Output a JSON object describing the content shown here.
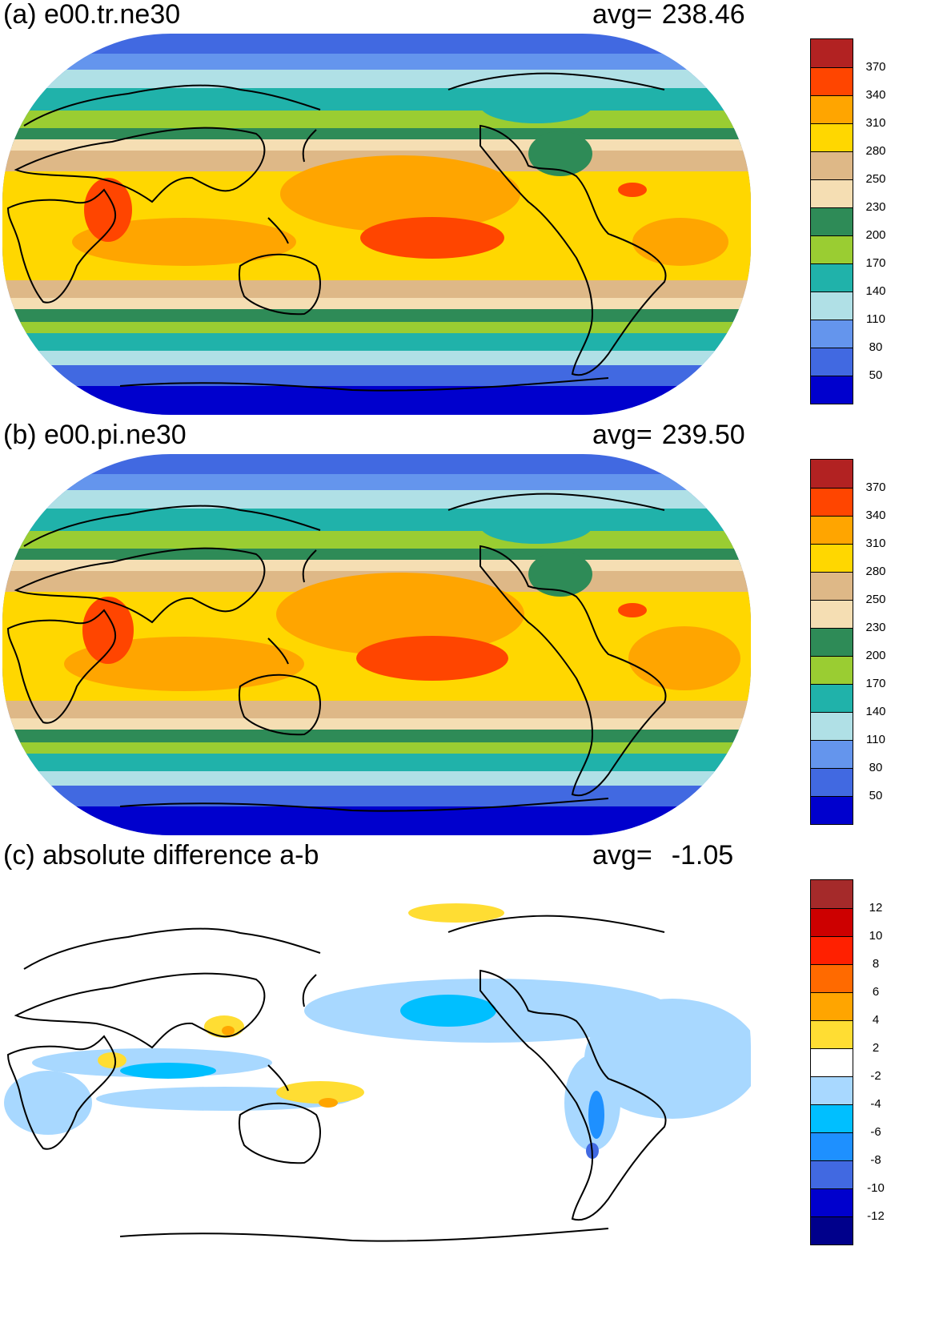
{
  "panels": [
    {
      "title": "(a) e00.tr.ne30",
      "avg_label": "avg=",
      "avg_value": "238.46",
      "colorbar": {
        "labels": [
          "370",
          "340",
          "310",
          "280",
          "250",
          "230",
          "200",
          "170",
          "140",
          "110",
          "80",
          "50"
        ],
        "colors": [
          "#b22222",
          "#ff4500",
          "#ffa500",
          "#ffd700",
          "#deb887",
          "#f5deb3",
          "#2e8b57",
          "#9acd32",
          "#20b2aa",
          "#b0e0e6",
          "#6495ed",
          "#4169e1",
          "#0000cd"
        ]
      }
    },
    {
      "title": "(b) e00.pi.ne30",
      "avg_label": "avg=",
      "avg_value": "239.50",
      "colorbar": {
        "labels": [
          "370",
          "340",
          "310",
          "280",
          "250",
          "230",
          "200",
          "170",
          "140",
          "110",
          "80",
          "50"
        ],
        "colors": [
          "#b22222",
          "#ff4500",
          "#ffa500",
          "#ffd700",
          "#deb887",
          "#f5deb3",
          "#2e8b57",
          "#9acd32",
          "#20b2aa",
          "#b0e0e6",
          "#6495ed",
          "#4169e1",
          "#0000cd"
        ]
      }
    },
    {
      "title": "(c) absolute difference a-b",
      "avg_label": "avg=",
      "avg_value": "-1.05",
      "colorbar": {
        "labels": [
          "12",
          "10",
          "8",
          "6",
          "4",
          "2",
          "-2",
          "-4",
          "-6",
          "-8",
          "-10",
          "-12"
        ],
        "colors": [
          "#a52a2a",
          "#cd0000",
          "#ff2000",
          "#ff6a00",
          "#ffa500",
          "#ffdd33",
          "#ffffff",
          "#a8d8ff",
          "#00bfff",
          "#1e90ff",
          "#4169e1",
          "#0000cd",
          "#00008b"
        ]
      }
    }
  ]
}
